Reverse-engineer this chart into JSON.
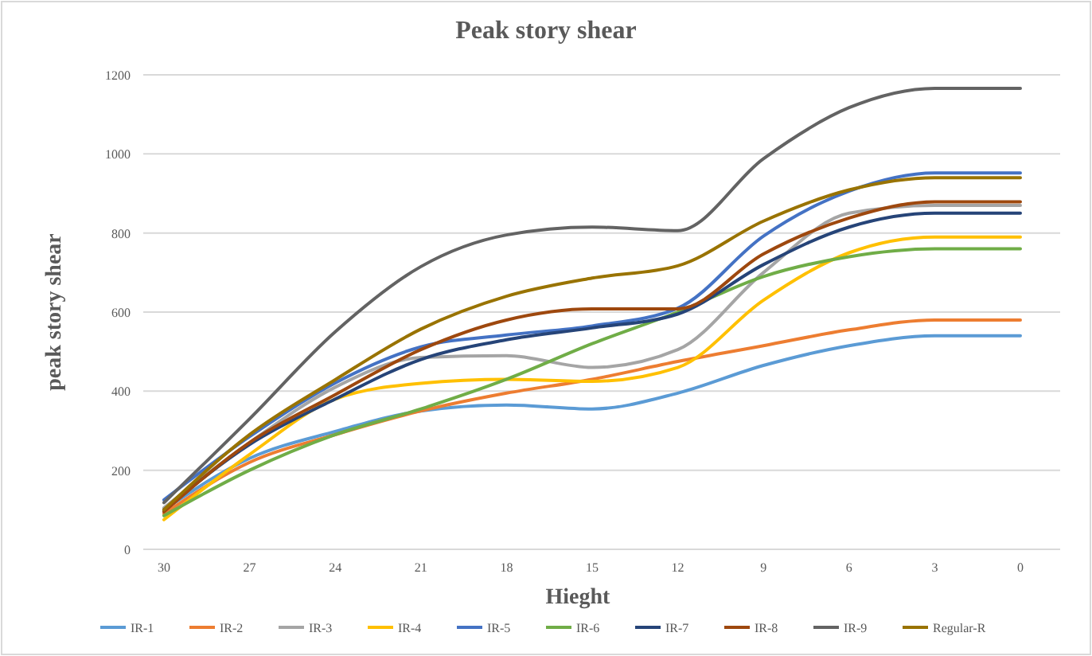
{
  "chart_data": {
    "type": "line",
    "title": "Peak story shear",
    "xlabel": "Hieght",
    "ylabel": "peak story shear",
    "categories": [
      "30",
      "27",
      "24",
      "21",
      "18",
      "15",
      "12",
      "9",
      "6",
      "3",
      "0"
    ],
    "ylim": [
      0,
      1200
    ],
    "yticks": [
      0,
      200,
      400,
      600,
      800,
      1000,
      1200
    ],
    "grid": "y",
    "legend": "bottom",
    "marker": "none",
    "line_style": "solid",
    "series": [
      {
        "name": "IR-1",
        "color": "#5b9bd5",
        "values": [
          100,
          230,
          298,
          350,
          365,
          355,
          395,
          465,
          515,
          540,
          540
        ]
      },
      {
        "name": "IR-2",
        "color": "#ed7d31",
        "values": [
          90,
          220,
          290,
          350,
          395,
          430,
          475,
          515,
          555,
          580,
          580
        ]
      },
      {
        "name": "IR-3",
        "color": "#a5a5a5",
        "values": [
          105,
          270,
          410,
          485,
          490,
          460,
          505,
          700,
          850,
          870,
          870
        ]
      },
      {
        "name": "IR-4",
        "color": "#ffc000",
        "values": [
          75,
          240,
          380,
          420,
          430,
          425,
          460,
          630,
          750,
          790,
          790
        ]
      },
      {
        "name": "IR-5",
        "color": "#4472c4",
        "values": [
          125,
          285,
          421,
          512,
          542,
          565,
          610,
          792,
          906,
          952,
          952
        ]
      },
      {
        "name": "IR-6",
        "color": "#70ad47",
        "values": [
          85,
          200,
          290,
          355,
          430,
          520,
          600,
          690,
          740,
          760,
          760
        ]
      },
      {
        "name": "IR-7",
        "color": "#264478",
        "values": [
          100,
          265,
          380,
          480,
          530,
          560,
          595,
          720,
          815,
          850,
          850
        ]
      },
      {
        "name": "IR-8",
        "color": "#9e480e",
        "values": [
          95,
          270,
          391,
          505,
          580,
          608,
          608,
          747,
          838,
          879,
          879
        ]
      },
      {
        "name": "IR-9",
        "color": "#636363",
        "values": [
          118,
          330,
          550,
          715,
          795,
          815,
          806,
          988,
          1117,
          1166,
          1166
        ]
      },
      {
        "name": "Regular-R",
        "color": "#997300",
        "values": [
          100,
          290,
          429,
          557,
          640,
          686,
          717,
          830,
          909,
          940,
          940
        ]
      }
    ]
  }
}
